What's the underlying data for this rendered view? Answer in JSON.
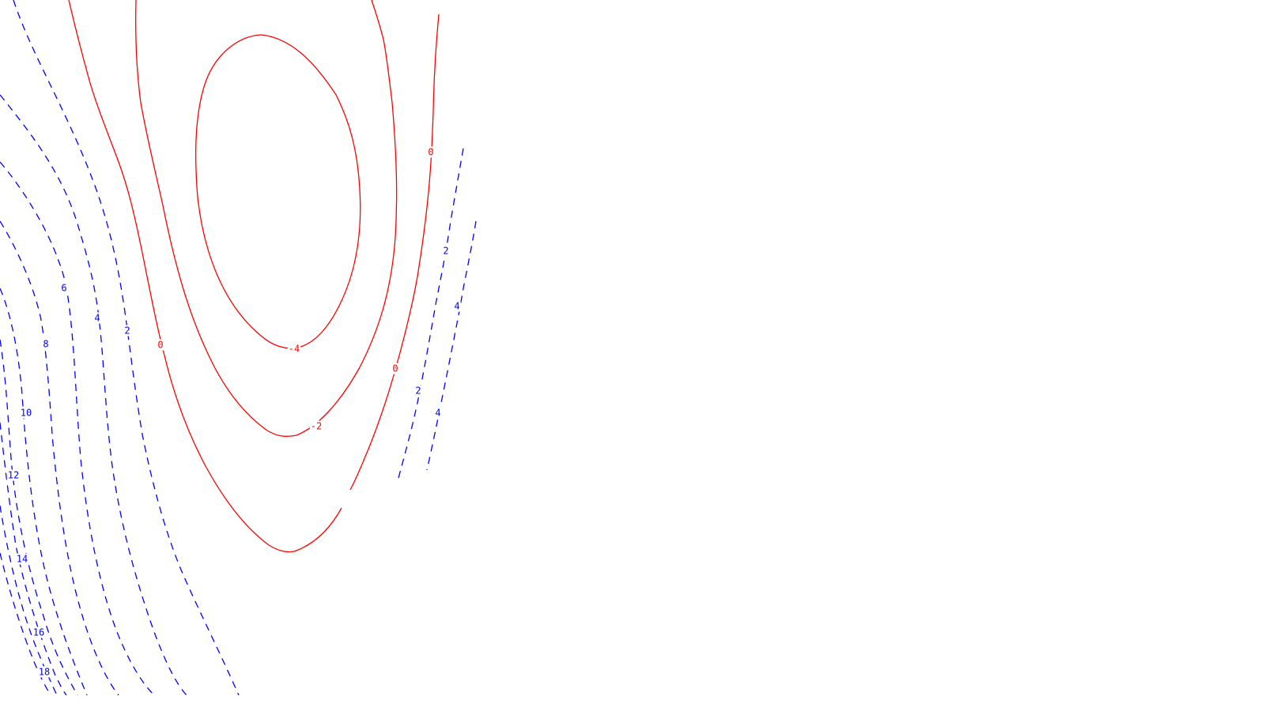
{
  "chart_data": {
    "type": "contour",
    "grid": false,
    "colors": {
      "negative": "#ff0000",
      "positive": "#0000ff"
    },
    "line_styles": {
      "negative": "solid",
      "positive": "dashed"
    },
    "contour_levels": [
      -4,
      -2,
      0,
      2,
      4,
      6,
      8,
      10,
      12,
      14,
      16,
      18
    ],
    "level_labels": [
      {
        "id": "lbl-neg4",
        "text": "-4",
        "level": -4,
        "color": "#ff0000"
      },
      {
        "id": "lbl-neg2",
        "text": "-2",
        "level": -2,
        "color": "#ff0000"
      },
      {
        "id": "lbl-0-left",
        "text": "0",
        "level": 0,
        "color": "#ff0000"
      },
      {
        "id": "lbl-0-right-low",
        "text": "0",
        "level": 0,
        "color": "#ff0000"
      },
      {
        "id": "lbl-0-right-high",
        "text": "0",
        "level": 0,
        "color": "#ff0000"
      },
      {
        "id": "lbl-2-left",
        "text": "2",
        "level": 2,
        "color": "#0000ff"
      },
      {
        "id": "lbl-4-left",
        "text": "4",
        "level": 4,
        "color": "#0000ff"
      },
      {
        "id": "lbl-6",
        "text": "6",
        "level": 6,
        "color": "#0000ff"
      },
      {
        "id": "lbl-8",
        "text": "8",
        "level": 8,
        "color": "#0000ff"
      },
      {
        "id": "lbl-10",
        "text": "10",
        "level": 10,
        "color": "#0000ff"
      },
      {
        "id": "lbl-12",
        "text": "12",
        "level": 12,
        "color": "#0000ff"
      },
      {
        "id": "lbl-14",
        "text": "14",
        "level": 14,
        "color": "#0000ff"
      },
      {
        "id": "lbl-16",
        "text": "16",
        "level": 16,
        "color": "#0000ff"
      },
      {
        "id": "lbl-18",
        "text": "18",
        "level": 18,
        "color": "#0000ff"
      },
      {
        "id": "lbl-2-right-high",
        "text": "2",
        "level": 2,
        "color": "#0000ff"
      },
      {
        "id": "lbl-2-right-low",
        "text": "2",
        "level": 2,
        "color": "#0000ff"
      },
      {
        "id": "lbl-4-right-high",
        "text": "4",
        "level": 4,
        "color": "#0000ff"
      },
      {
        "id": "lbl-4-right-low",
        "text": "4",
        "level": 4,
        "color": "#0000ff"
      }
    ]
  }
}
